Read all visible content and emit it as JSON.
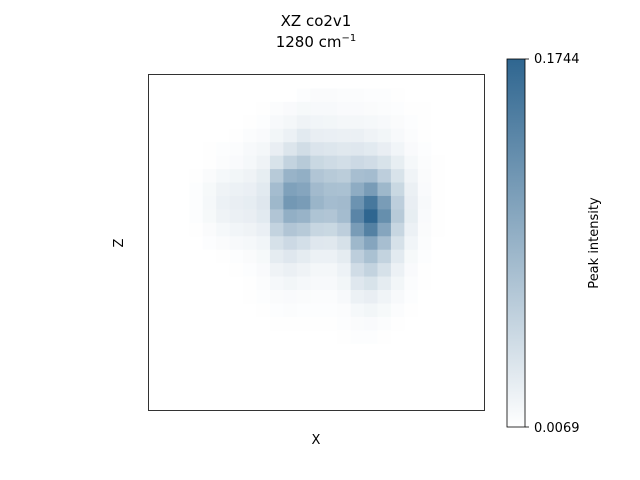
{
  "chart_data": {
    "type": "heatmap",
    "title_line1": "XZ co2v1",
    "title_line2_base": "1280 cm",
    "title_line2_sup": "−1",
    "xlabel": "X",
    "ylabel": "Z",
    "colorbar_label": "Peak intensity",
    "colorbar_max_label": "0.1744",
    "colorbar_min_label": "0.0069",
    "vmin": 0.0069,
    "vmax": 0.1744,
    "colormap": [
      "#ffffff",
      "#2f6690"
    ],
    "grid_cols": 25,
    "grid_rows": 25,
    "values": [
      [
        0.007,
        0.007,
        0.007,
        0.007,
        0.007,
        0.007,
        0.007,
        0.007,
        0.007,
        0.007,
        0.007,
        0.007,
        0.007,
        0.007,
        0.007,
        0.007,
        0.007,
        0.007,
        0.007,
        0.007,
        0.007,
        0.007,
        0.007,
        0.007,
        0.007
      ],
      [
        0.007,
        0.007,
        0.007,
        0.007,
        0.007,
        0.007,
        0.007,
        0.007,
        0.007,
        0.007,
        0.007,
        0.009,
        0.011,
        0.011,
        0.01,
        0.01,
        0.009,
        0.009,
        0.008,
        0.007,
        0.007,
        0.007,
        0.007,
        0.007,
        0.007
      ],
      [
        0.007,
        0.007,
        0.007,
        0.007,
        0.007,
        0.007,
        0.007,
        0.007,
        0.008,
        0.01,
        0.012,
        0.014,
        0.013,
        0.013,
        0.012,
        0.012,
        0.011,
        0.01,
        0.009,
        0.008,
        0.008,
        0.007,
        0.007,
        0.007,
        0.007
      ],
      [
        0.007,
        0.007,
        0.007,
        0.007,
        0.007,
        0.007,
        0.007,
        0.008,
        0.009,
        0.013,
        0.016,
        0.02,
        0.018,
        0.017,
        0.016,
        0.016,
        0.015,
        0.013,
        0.011,
        0.009,
        0.008,
        0.007,
        0.007,
        0.007,
        0.007
      ],
      [
        0.007,
        0.007,
        0.007,
        0.007,
        0.007,
        0.007,
        0.008,
        0.01,
        0.012,
        0.017,
        0.022,
        0.03,
        0.025,
        0.024,
        0.023,
        0.023,
        0.02,
        0.017,
        0.013,
        0.01,
        0.008,
        0.007,
        0.007,
        0.007,
        0.007
      ],
      [
        0.007,
        0.007,
        0.007,
        0.007,
        0.008,
        0.009,
        0.01,
        0.013,
        0.016,
        0.025,
        0.035,
        0.044,
        0.036,
        0.034,
        0.032,
        0.033,
        0.03,
        0.025,
        0.018,
        0.012,
        0.009,
        0.007,
        0.007,
        0.007,
        0.007
      ],
      [
        0.007,
        0.007,
        0.007,
        0.007,
        0.008,
        0.01,
        0.012,
        0.015,
        0.02,
        0.038,
        0.055,
        0.065,
        0.05,
        0.046,
        0.043,
        0.048,
        0.045,
        0.038,
        0.026,
        0.015,
        0.01,
        0.008,
        0.007,
        0.007,
        0.007
      ],
      [
        0.007,
        0.007,
        0.007,
        0.008,
        0.011,
        0.015,
        0.017,
        0.02,
        0.026,
        0.065,
        0.09,
        0.095,
        0.07,
        0.065,
        0.062,
        0.078,
        0.08,
        0.06,
        0.038,
        0.019,
        0.011,
        0.008,
        0.007,
        0.007,
        0.007
      ],
      [
        0.007,
        0.007,
        0.007,
        0.009,
        0.014,
        0.02,
        0.022,
        0.024,
        0.03,
        0.08,
        0.11,
        0.105,
        0.082,
        0.076,
        0.075,
        0.098,
        0.115,
        0.085,
        0.05,
        0.023,
        0.012,
        0.008,
        0.007,
        0.007,
        0.007
      ],
      [
        0.007,
        0.007,
        0.007,
        0.009,
        0.015,
        0.022,
        0.025,
        0.027,
        0.033,
        0.085,
        0.12,
        0.115,
        0.088,
        0.08,
        0.082,
        0.125,
        0.155,
        0.115,
        0.06,
        0.025,
        0.013,
        0.008,
        0.007,
        0.007,
        0.007
      ],
      [
        0.007,
        0.007,
        0.007,
        0.009,
        0.014,
        0.02,
        0.023,
        0.025,
        0.03,
        0.07,
        0.095,
        0.09,
        0.072,
        0.07,
        0.08,
        0.14,
        0.1744,
        0.13,
        0.065,
        0.026,
        0.012,
        0.008,
        0.007,
        0.007,
        0.007
      ],
      [
        0.007,
        0.007,
        0.007,
        0.008,
        0.011,
        0.015,
        0.018,
        0.02,
        0.024,
        0.055,
        0.07,
        0.065,
        0.052,
        0.05,
        0.06,
        0.115,
        0.145,
        0.105,
        0.052,
        0.022,
        0.011,
        0.008,
        0.007,
        0.007,
        0.007
      ],
      [
        0.007,
        0.007,
        0.007,
        0.007,
        0.009,
        0.011,
        0.013,
        0.015,
        0.018,
        0.04,
        0.048,
        0.042,
        0.033,
        0.032,
        0.04,
        0.085,
        0.105,
        0.078,
        0.04,
        0.018,
        0.01,
        0.007,
        0.007,
        0.007,
        0.007
      ],
      [
        0.007,
        0.007,
        0.007,
        0.007,
        0.007,
        0.008,
        0.009,
        0.011,
        0.014,
        0.028,
        0.033,
        0.028,
        0.022,
        0.022,
        0.028,
        0.06,
        0.075,
        0.055,
        0.03,
        0.014,
        0.009,
        0.007,
        0.007,
        0.007,
        0.007
      ],
      [
        0.007,
        0.007,
        0.007,
        0.007,
        0.007,
        0.007,
        0.008,
        0.009,
        0.012,
        0.02,
        0.023,
        0.02,
        0.016,
        0.016,
        0.021,
        0.045,
        0.055,
        0.04,
        0.022,
        0.012,
        0.008,
        0.007,
        0.007,
        0.007,
        0.007
      ],
      [
        0.007,
        0.007,
        0.007,
        0.007,
        0.007,
        0.007,
        0.007,
        0.008,
        0.01,
        0.015,
        0.017,
        0.015,
        0.013,
        0.013,
        0.017,
        0.033,
        0.038,
        0.028,
        0.017,
        0.01,
        0.008,
        0.007,
        0.007,
        0.007,
        0.007
      ],
      [
        0.007,
        0.007,
        0.007,
        0.007,
        0.007,
        0.007,
        0.007,
        0.008,
        0.009,
        0.011,
        0.012,
        0.011,
        0.01,
        0.01,
        0.013,
        0.022,
        0.025,
        0.019,
        0.013,
        0.009,
        0.007,
        0.007,
        0.007,
        0.007,
        0.007
      ],
      [
        0.007,
        0.007,
        0.007,
        0.007,
        0.007,
        0.007,
        0.007,
        0.007,
        0.008,
        0.009,
        0.01,
        0.009,
        0.009,
        0.009,
        0.01,
        0.015,
        0.017,
        0.014,
        0.01,
        0.008,
        0.007,
        0.007,
        0.007,
        0.007,
        0.007
      ],
      [
        0.007,
        0.007,
        0.007,
        0.007,
        0.007,
        0.007,
        0.007,
        0.007,
        0.007,
        0.008,
        0.008,
        0.008,
        0.008,
        0.008,
        0.009,
        0.011,
        0.012,
        0.01,
        0.008,
        0.007,
        0.007,
        0.007,
        0.007,
        0.007,
        0.007
      ],
      [
        0.007,
        0.007,
        0.007,
        0.007,
        0.007,
        0.007,
        0.007,
        0.007,
        0.007,
        0.007,
        0.007,
        0.007,
        0.007,
        0.007,
        0.008,
        0.009,
        0.009,
        0.008,
        0.007,
        0.007,
        0.007,
        0.007,
        0.007,
        0.007,
        0.007
      ],
      [
        0.007,
        0.007,
        0.007,
        0.007,
        0.007,
        0.007,
        0.007,
        0.007,
        0.007,
        0.007,
        0.007,
        0.007,
        0.007,
        0.007,
        0.007,
        0.007,
        0.007,
        0.007,
        0.007,
        0.007,
        0.007,
        0.007,
        0.007,
        0.007,
        0.007
      ],
      [
        0.007,
        0.007,
        0.007,
        0.007,
        0.007,
        0.007,
        0.007,
        0.007,
        0.007,
        0.007,
        0.007,
        0.007,
        0.007,
        0.007,
        0.007,
        0.007,
        0.007,
        0.007,
        0.007,
        0.007,
        0.007,
        0.007,
        0.007,
        0.007,
        0.007
      ],
      [
        0.007,
        0.007,
        0.007,
        0.007,
        0.007,
        0.007,
        0.007,
        0.007,
        0.007,
        0.007,
        0.007,
        0.007,
        0.007,
        0.007,
        0.007,
        0.007,
        0.007,
        0.007,
        0.007,
        0.007,
        0.007,
        0.007,
        0.007,
        0.007,
        0.007
      ],
      [
        0.007,
        0.007,
        0.007,
        0.007,
        0.007,
        0.007,
        0.007,
        0.007,
        0.007,
        0.007,
        0.007,
        0.007,
        0.007,
        0.007,
        0.007,
        0.007,
        0.007,
        0.007,
        0.007,
        0.007,
        0.007,
        0.007,
        0.007,
        0.007,
        0.007
      ],
      [
        0.007,
        0.007,
        0.007,
        0.007,
        0.007,
        0.007,
        0.007,
        0.007,
        0.007,
        0.007,
        0.007,
        0.007,
        0.007,
        0.007,
        0.007,
        0.007,
        0.007,
        0.007,
        0.007,
        0.007,
        0.007,
        0.007,
        0.007,
        0.007,
        0.007
      ]
    ],
    "grid": false
  }
}
